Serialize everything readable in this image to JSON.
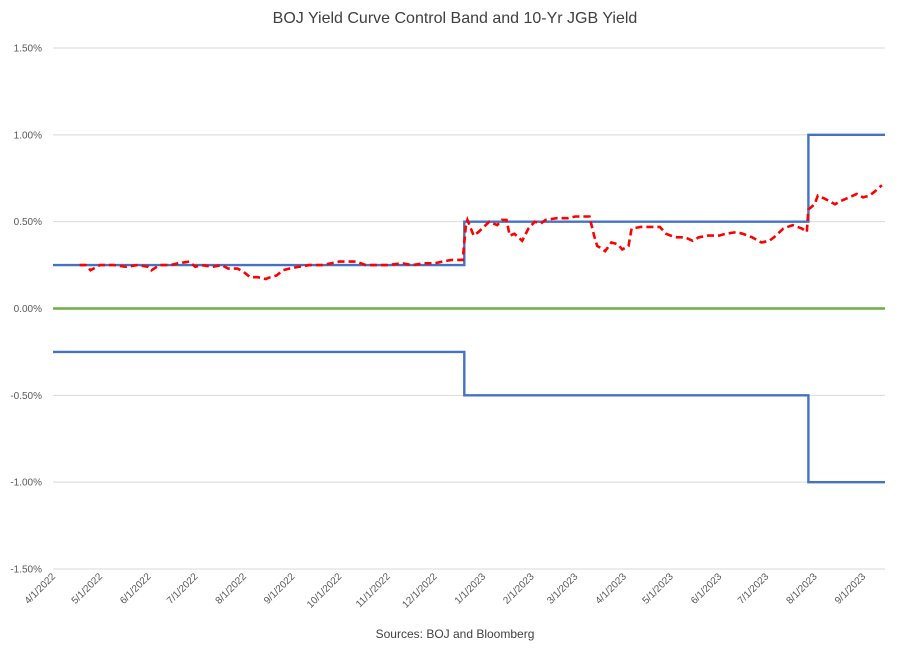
{
  "chart_data": {
    "type": "line",
    "title": "BOJ Yield Curve Control Band and 10-Yr JGB Yield",
    "source_note": "Sources: BOJ and Bloomberg",
    "y_axis": {
      "min": -1.5,
      "max": 1.5,
      "ticks": [
        1.5,
        1.0,
        0.5,
        0.0,
        -0.5,
        -1.0,
        -1.5
      ],
      "tick_labels": [
        "1.50%",
        "1.00%",
        "0.50%",
        "0.00%",
        "-0.50%",
        "-1.00%",
        "-1.50%"
      ],
      "gridlines": true
    },
    "x_axis": {
      "min": "2022-04-01",
      "max": "2023-09-15",
      "ticks": [
        "2022-04-01",
        "2022-05-01",
        "2022-06-01",
        "2022-07-01",
        "2022-08-01",
        "2022-09-01",
        "2022-10-01",
        "2022-11-01",
        "2022-12-01",
        "2023-01-01",
        "2023-02-01",
        "2023-03-01",
        "2023-04-01",
        "2023-05-01",
        "2023-06-01",
        "2023-07-01",
        "2023-08-01",
        "2023-09-01"
      ],
      "tick_labels": [
        "4/1/2022",
        "5/1/2022",
        "6/1/2022",
        "7/1/2022",
        "8/1/2022",
        "9/1/2022",
        "10/1/2022",
        "11/1/2022",
        "12/1/2022",
        "1/1/2023",
        "2/1/2023",
        "3/1/2023",
        "4/1/2023",
        "5/1/2023",
        "6/1/2023",
        "7/1/2023",
        "8/1/2023",
        "9/1/2023"
      ]
    },
    "series": [
      {
        "color": "#4472C4",
        "style": "solid",
        "points": [
          [
            "2022-04-01",
            0.25
          ],
          [
            "2022-12-20",
            0.25
          ],
          [
            "2022-12-20",
            0.5
          ],
          [
            "2023-07-28",
            0.5
          ],
          [
            "2023-07-28",
            1.0
          ],
          [
            "2023-09-15",
            1.0
          ]
        ]
      },
      {
        "color": "#4472C4",
        "style": "solid",
        "points": [
          [
            "2022-04-01",
            -0.25
          ],
          [
            "2022-12-20",
            -0.25
          ],
          [
            "2022-12-20",
            -0.5
          ],
          [
            "2023-07-28",
            -0.5
          ],
          [
            "2023-07-28",
            -1.0
          ],
          [
            "2023-09-15",
            -1.0
          ]
        ]
      },
      {
        "color": "#70AD47",
        "style": "solid",
        "points": [
          [
            "2022-04-01",
            0.0
          ],
          [
            "2023-09-15",
            0.0
          ]
        ]
      },
      {
        "color": "#FF0000",
        "style": "dashed",
        "points": [
          [
            "2022-04-18",
            0.25
          ],
          [
            "2022-04-22",
            0.25
          ],
          [
            "2022-04-25",
            0.22
          ],
          [
            "2022-05-01",
            0.25
          ],
          [
            "2022-05-10",
            0.25
          ],
          [
            "2022-05-18",
            0.24
          ],
          [
            "2022-05-25",
            0.25
          ],
          [
            "2022-06-01",
            0.24
          ],
          [
            "2022-06-03",
            0.22
          ],
          [
            "2022-06-08",
            0.25
          ],
          [
            "2022-06-15",
            0.25
          ],
          [
            "2022-06-20",
            0.26
          ],
          [
            "2022-06-27",
            0.27
          ],
          [
            "2022-07-01",
            0.24
          ],
          [
            "2022-07-05",
            0.25
          ],
          [
            "2022-07-12",
            0.24
          ],
          [
            "2022-07-18",
            0.25
          ],
          [
            "2022-07-22",
            0.23
          ],
          [
            "2022-07-28",
            0.23
          ],
          [
            "2022-08-01",
            0.21
          ],
          [
            "2022-08-05",
            0.18
          ],
          [
            "2022-08-10",
            0.18
          ],
          [
            "2022-08-15",
            0.17
          ],
          [
            "2022-08-18",
            0.18
          ],
          [
            "2022-08-22",
            0.19
          ],
          [
            "2022-08-26",
            0.22
          ],
          [
            "2022-08-30",
            0.23
          ],
          [
            "2022-09-05",
            0.24
          ],
          [
            "2022-09-12",
            0.25
          ],
          [
            "2022-09-20",
            0.25
          ],
          [
            "2022-09-26",
            0.26
          ],
          [
            "2022-10-01",
            0.27
          ],
          [
            "2022-10-07",
            0.27
          ],
          [
            "2022-10-12",
            0.27
          ],
          [
            "2022-10-18",
            0.25
          ],
          [
            "2022-10-24",
            0.25
          ],
          [
            "2022-11-01",
            0.25
          ],
          [
            "2022-11-10",
            0.26
          ],
          [
            "2022-11-17",
            0.25
          ],
          [
            "2022-11-24",
            0.26
          ],
          [
            "2022-12-01",
            0.26
          ],
          [
            "2022-12-06",
            0.27
          ],
          [
            "2022-12-12",
            0.28
          ],
          [
            "2022-12-19",
            0.28
          ],
          [
            "2022-12-21",
            0.48
          ],
          [
            "2022-12-22",
            0.51
          ],
          [
            "2022-12-26",
            0.42
          ],
          [
            "2022-12-29",
            0.44
          ],
          [
            "2023-01-05",
            0.5
          ],
          [
            "2023-01-10",
            0.48
          ],
          [
            "2023-01-13",
            0.51
          ],
          [
            "2023-01-16",
            0.51
          ],
          [
            "2023-01-18",
            0.42
          ],
          [
            "2023-01-21",
            0.43
          ],
          [
            "2023-01-26",
            0.39
          ],
          [
            "2023-01-30",
            0.46
          ],
          [
            "2023-02-03",
            0.5
          ],
          [
            "2023-02-07",
            0.49
          ],
          [
            "2023-02-10",
            0.51
          ],
          [
            "2023-02-17",
            0.52
          ],
          [
            "2023-02-24",
            0.52
          ],
          [
            "2023-03-01",
            0.53
          ],
          [
            "2023-03-06",
            0.53
          ],
          [
            "2023-03-10",
            0.53
          ],
          [
            "2023-03-13",
            0.42
          ],
          [
            "2023-03-15",
            0.36
          ],
          [
            "2023-03-17",
            0.35
          ],
          [
            "2023-03-20",
            0.33
          ],
          [
            "2023-03-24",
            0.38
          ],
          [
            "2023-03-28",
            0.37
          ],
          [
            "2023-03-31",
            0.34
          ],
          [
            "2023-04-04",
            0.36
          ],
          [
            "2023-04-06",
            0.46
          ],
          [
            "2023-04-12",
            0.47
          ],
          [
            "2023-04-18",
            0.47
          ],
          [
            "2023-04-24",
            0.47
          ],
          [
            "2023-04-28",
            0.43
          ],
          [
            "2023-05-01",
            0.42
          ],
          [
            "2023-05-05",
            0.41
          ],
          [
            "2023-05-10",
            0.41
          ],
          [
            "2023-05-15",
            0.39
          ],
          [
            "2023-05-19",
            0.41
          ],
          [
            "2023-05-25",
            0.42
          ],
          [
            "2023-06-01",
            0.42
          ],
          [
            "2023-06-05",
            0.43
          ],
          [
            "2023-06-12",
            0.44
          ],
          [
            "2023-06-16",
            0.43
          ],
          [
            "2023-06-22",
            0.41
          ],
          [
            "2023-06-28",
            0.38
          ],
          [
            "2023-07-03",
            0.39
          ],
          [
            "2023-07-06",
            0.41
          ],
          [
            "2023-07-12",
            0.46
          ],
          [
            "2023-07-18",
            0.48
          ],
          [
            "2023-07-24",
            0.46
          ],
          [
            "2023-07-27",
            0.44
          ],
          [
            "2023-07-28",
            0.57
          ],
          [
            "2023-08-01",
            0.6
          ],
          [
            "2023-08-03",
            0.65
          ],
          [
            "2023-08-08",
            0.63
          ],
          [
            "2023-08-14",
            0.6
          ],
          [
            "2023-08-18",
            0.62
          ],
          [
            "2023-08-23",
            0.64
          ],
          [
            "2023-08-28",
            0.66
          ],
          [
            "2023-09-01",
            0.64
          ],
          [
            "2023-09-05",
            0.65
          ],
          [
            "2023-09-08",
            0.67
          ],
          [
            "2023-09-13",
            0.71
          ]
        ]
      }
    ]
  }
}
